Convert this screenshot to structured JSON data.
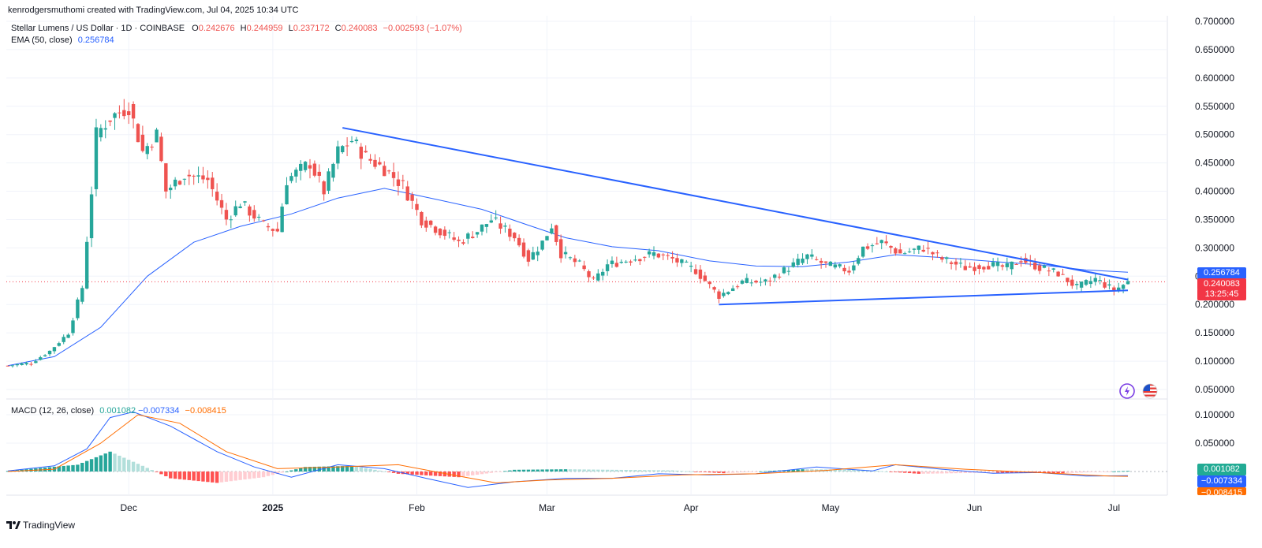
{
  "header": {
    "credit": "kenrodgersmuthomi created with TradingView.com, Jul 04, 2025 10:34 UTC"
  },
  "legend": {
    "symbol": "Stellar Lumens / US Dollar · 1D · COINBASE",
    "o_label": "O",
    "o": "0.242676",
    "h_label": "H",
    "h": "0.244959",
    "l_label": "L",
    "l": "0.237172",
    "c_label": "C",
    "c": "0.240083",
    "change": "−0.002593 (−1.07%)",
    "ema_label": "EMA (50, close)",
    "ema_value": "0.256784",
    "macd_label": "MACD (12, 26, close)",
    "macd_hist": "0.001082",
    "macd_line": "−0.007334",
    "macd_signal": "−0.008415"
  },
  "badges": {
    "ema": "0.256784",
    "close": "0.240083",
    "countdown": "13:25:45",
    "macd_hist": "0.001082",
    "macd_line": "−0.007334",
    "macd_signal": "−0.008415"
  },
  "footer": {
    "brand": "TradingView"
  },
  "colors": {
    "up": "#26a69a",
    "down": "#ef5350",
    "ema": "#2962ff",
    "trend": "#2962ff",
    "macd": "#2962ff",
    "signal": "#ff6d00",
    "grid": "#f0f3fa"
  },
  "chart_data": [
    {
      "type": "candlestick",
      "title": "Stellar Lumens / US Dollar · 1D · COINBASE",
      "y_axis_ticks": [
        "0.700000",
        "0.650000",
        "0.600000",
        "0.550000",
        "0.500000",
        "0.450000",
        "0.400000",
        "0.350000",
        "0.300000",
        "0.250000",
        "0.200000",
        "0.150000",
        "0.100000",
        "0.050000"
      ],
      "ylim": [
        0.03,
        0.71
      ],
      "x_axis_ticks": [
        "Dec",
        "2025",
        "Feb",
        "Mar",
        "Apr",
        "May",
        "Jun",
        "Jul"
      ],
      "date_range": [
        "2024-11-05",
        "2025-07-04"
      ],
      "current_price": 0.240083,
      "ema": {
        "name": "EMA (50, close)",
        "points": [
          [
            "2024-11-05",
            0.092
          ],
          [
            "2024-11-15",
            0.108
          ],
          [
            "2024-11-25",
            0.16
          ],
          [
            "2024-12-05",
            0.25
          ],
          [
            "2024-12-15",
            0.31
          ],
          [
            "2024-12-25",
            0.338
          ],
          [
            "2025-01-05",
            0.36
          ],
          [
            "2025-01-15",
            0.388
          ],
          [
            "2025-01-25",
            0.405
          ],
          [
            "2025-02-05",
            0.386
          ],
          [
            "2025-02-15",
            0.368
          ],
          [
            "2025-02-25",
            0.34
          ],
          [
            "2025-03-05",
            0.318
          ],
          [
            "2025-03-15",
            0.302
          ],
          [
            "2025-03-25",
            0.295
          ],
          [
            "2025-04-05",
            0.277
          ],
          [
            "2025-04-15",
            0.268
          ],
          [
            "2025-04-25",
            0.267
          ],
          [
            "2025-05-05",
            0.275
          ],
          [
            "2025-05-15",
            0.288
          ],
          [
            "2025-05-25",
            0.283
          ],
          [
            "2025-06-05",
            0.276
          ],
          [
            "2025-06-15",
            0.27
          ],
          [
            "2025-06-25",
            0.261
          ],
          [
            "2025-07-04",
            0.257
          ]
        ]
      },
      "trendlines": [
        {
          "from": [
            "2025-01-16",
            0.512
          ],
          "to": [
            "2025-07-04",
            0.244
          ]
        },
        {
          "from": [
            "2025-04-07",
            0.2
          ],
          "to": [
            "2025-07-04",
            0.225
          ]
        }
      ],
      "ohlc_anchor_closes": [
        [
          "2024-11-05",
          0.092
        ],
        [
          "2024-11-10",
          0.097
        ],
        [
          "2024-11-14",
          0.118
        ],
        [
          "2024-11-18",
          0.15
        ],
        [
          "2024-11-21",
          0.23
        ],
        [
          "2024-11-23",
          0.4
        ],
        [
          "2024-11-24",
          0.5
        ],
        [
          "2024-11-27",
          0.53
        ],
        [
          "2024-12-01",
          0.55
        ],
        [
          "2024-12-04",
          0.47
        ],
        [
          "2024-12-07",
          0.5
        ],
        [
          "2024-12-09",
          0.4
        ],
        [
          "2024-12-13",
          0.43
        ],
        [
          "2024-12-18",
          0.42
        ],
        [
          "2024-12-22",
          0.35
        ],
        [
          "2024-12-25",
          0.38
        ],
        [
          "2024-12-30",
          0.34
        ],
        [
          "2025-01-02",
          0.33
        ],
        [
          "2025-01-04",
          0.42
        ],
        [
          "2025-01-09",
          0.45
        ],
        [
          "2025-01-12",
          0.4
        ],
        [
          "2025-01-15",
          0.47
        ],
        [
          "2025-01-18",
          0.49
        ],
        [
          "2025-01-21",
          0.46
        ],
        [
          "2025-01-25",
          0.44
        ],
        [
          "2025-01-29",
          0.41
        ],
        [
          "2025-02-02",
          0.35
        ],
        [
          "2025-02-06",
          0.33
        ],
        [
          "2025-02-10",
          0.31
        ],
        [
          "2025-02-14",
          0.33
        ],
        [
          "2025-02-17",
          0.35
        ],
        [
          "2025-02-22",
          0.32
        ],
        [
          "2025-02-25",
          0.28
        ],
        [
          "2025-02-28",
          0.31
        ],
        [
          "2025-03-02",
          0.34
        ],
        [
          "2025-03-04",
          0.29
        ],
        [
          "2025-03-08",
          0.27
        ],
        [
          "2025-03-11",
          0.24
        ],
        [
          "2025-03-14",
          0.27
        ],
        [
          "2025-03-19",
          0.28
        ],
        [
          "2025-03-24",
          0.29
        ],
        [
          "2025-03-28",
          0.28
        ],
        [
          "2025-04-02",
          0.26
        ],
        [
          "2025-04-07",
          0.215
        ],
        [
          "2025-04-12",
          0.24
        ],
        [
          "2025-04-17",
          0.24
        ],
        [
          "2025-04-22",
          0.265
        ],
        [
          "2025-04-26",
          0.285
        ],
        [
          "2025-04-30",
          0.27
        ],
        [
          "2025-05-05",
          0.26
        ],
        [
          "2025-05-08",
          0.3
        ],
        [
          "2025-05-12",
          0.31
        ],
        [
          "2025-05-16",
          0.29
        ],
        [
          "2025-05-21",
          0.3
        ],
        [
          "2025-05-25",
          0.28
        ],
        [
          "2025-05-30",
          0.265
        ],
        [
          "2025-06-04",
          0.27
        ],
        [
          "2025-06-08",
          0.265
        ],
        [
          "2025-06-11",
          0.28
        ],
        [
          "2025-06-15",
          0.265
        ],
        [
          "2025-06-19",
          0.255
        ],
        [
          "2025-06-23",
          0.23
        ],
        [
          "2025-06-27",
          0.245
        ],
        [
          "2025-07-01",
          0.225
        ],
        [
          "2025-07-04",
          0.24
        ]
      ]
    },
    {
      "type": "bar",
      "title": "MACD (12, 26, close)",
      "y_axis_ticks": [
        "0.100000",
        "0.050000"
      ],
      "ylim": [
        -0.045,
        0.115
      ],
      "macd_line": [
        [
          "2024-11-05",
          0.001
        ],
        [
          "2024-11-15",
          0.01
        ],
        [
          "2024-11-22",
          0.04
        ],
        [
          "2024-11-27",
          0.095
        ],
        [
          "2024-12-02",
          0.105
        ],
        [
          "2024-12-10",
          0.08
        ],
        [
          "2024-12-20",
          0.035
        ],
        [
          "2024-12-28",
          0.008
        ],
        [
          "2025-01-05",
          -0.01
        ],
        [
          "2025-01-15",
          0.012
        ],
        [
          "2025-01-25",
          0.005
        ],
        [
          "2025-02-03",
          -0.012
        ],
        [
          "2025-02-12",
          -0.028
        ],
        [
          "2025-02-22",
          -0.018
        ],
        [
          "2025-03-05",
          -0.012
        ],
        [
          "2025-03-15",
          -0.012
        ],
        [
          "2025-03-25",
          -0.004
        ],
        [
          "2025-04-05",
          -0.006
        ],
        [
          "2025-04-15",
          -0.004
        ],
        [
          "2025-04-28",
          0.008
        ],
        [
          "2025-05-10",
          0.001
        ],
        [
          "2025-05-15",
          0.012
        ],
        [
          "2025-05-25",
          0.004
        ],
        [
          "2025-06-05",
          -0.003
        ],
        [
          "2025-06-15",
          -0.002
        ],
        [
          "2025-06-25",
          -0.008
        ],
        [
          "2025-07-04",
          -0.007334
        ]
      ],
      "signal_line": [
        [
          "2024-11-05",
          0.0
        ],
        [
          "2024-11-15",
          0.004
        ],
        [
          "2024-11-25",
          0.05
        ],
        [
          "2024-12-03",
          0.1
        ],
        [
          "2024-12-12",
          0.085
        ],
        [
          "2024-12-22",
          0.035
        ],
        [
          "2025-01-02",
          0.005
        ],
        [
          "2025-01-15",
          0.008
        ],
        [
          "2025-01-28",
          0.012
        ],
        [
          "2025-02-08",
          -0.005
        ],
        [
          "2025-02-18",
          -0.02
        ],
        [
          "2025-03-01",
          -0.015
        ],
        [
          "2025-03-15",
          -0.012
        ],
        [
          "2025-03-30",
          -0.006
        ],
        [
          "2025-04-15",
          -0.004
        ],
        [
          "2025-04-30",
          0.002
        ],
        [
          "2025-05-15",
          0.012
        ],
        [
          "2025-05-30",
          0.004
        ],
        [
          "2025-06-15",
          -0.002
        ],
        [
          "2025-06-30",
          -0.008
        ],
        [
          "2025-07-04",
          -0.008415
        ]
      ],
      "histogram_anchors": [
        [
          "2024-11-05",
          0.001
        ],
        [
          "2024-11-20",
          0.012
        ],
        [
          "2024-11-27",
          0.035
        ],
        [
          "2024-12-04",
          0.01
        ],
        [
          "2024-12-10",
          -0.012
        ],
        [
          "2024-12-20",
          -0.02
        ],
        [
          "2024-12-30",
          -0.01
        ],
        [
          "2025-01-08",
          0.008
        ],
        [
          "2025-01-18",
          0.01
        ],
        [
          "2025-01-28",
          -0.004
        ],
        [
          "2025-02-10",
          -0.01
        ],
        [
          "2025-02-22",
          0.003
        ],
        [
          "2025-03-05",
          0.004
        ],
        [
          "2025-03-15",
          0.003
        ],
        [
          "2025-03-28",
          0.002
        ],
        [
          "2025-04-08",
          -0.003
        ],
        [
          "2025-04-25",
          0.004
        ],
        [
          "2025-05-08",
          0.003
        ],
        [
          "2025-05-20",
          -0.004
        ],
        [
          "2025-06-05",
          -0.002
        ],
        [
          "2025-06-20",
          -0.003
        ],
        [
          "2025-07-04",
          0.001082
        ]
      ]
    }
  ]
}
